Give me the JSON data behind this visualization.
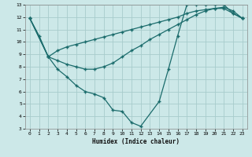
{
  "xlabel": "Humidex (Indice chaleur)",
  "xlim": [
    -0.5,
    23.5
  ],
  "ylim": [
    3,
    13
  ],
  "xticks": [
    0,
    1,
    2,
    3,
    4,
    5,
    6,
    7,
    8,
    9,
    10,
    11,
    12,
    13,
    14,
    15,
    16,
    17,
    18,
    19,
    20,
    21,
    22,
    23
  ],
  "yticks": [
    3,
    4,
    5,
    6,
    7,
    8,
    9,
    10,
    11,
    12,
    13
  ],
  "bg_color": "#cce8e8",
  "line_color": "#1a6b6b",
  "grid_color": "#a8cccc",
  "line1_x": [
    0,
    1,
    2,
    3,
    4,
    5,
    6,
    7,
    8,
    9,
    10,
    11,
    12,
    14,
    15,
    16,
    17,
    18,
    19,
    20,
    21,
    22,
    23
  ],
  "line1_y": [
    11.9,
    10.5,
    8.8,
    7.8,
    7.2,
    6.5,
    6.0,
    5.8,
    5.5,
    4.5,
    4.4,
    3.5,
    3.2,
    5.2,
    7.8,
    10.5,
    13.0,
    13.0,
    13.0,
    13.0,
    13.0,
    12.3,
    11.9
  ],
  "line2_x": [
    0,
    2,
    3,
    4,
    5,
    6,
    7,
    8,
    9,
    10,
    11,
    12,
    13,
    14,
    15,
    16,
    17,
    18,
    19,
    20,
    21,
    22,
    23
  ],
  "line2_y": [
    11.9,
    8.8,
    8.5,
    8.2,
    8.0,
    7.8,
    7.8,
    8.0,
    8.3,
    8.8,
    9.3,
    9.7,
    10.2,
    10.6,
    11.0,
    11.4,
    11.8,
    12.2,
    12.5,
    12.7,
    12.8,
    12.5,
    11.9
  ],
  "line3_x": [
    0,
    2,
    3,
    4,
    5,
    6,
    7,
    8,
    9,
    10,
    11,
    12,
    13,
    14,
    15,
    16,
    17,
    18,
    19,
    20,
    21,
    22,
    23
  ],
  "line3_y": [
    11.9,
    8.8,
    9.3,
    9.6,
    9.8,
    10.0,
    10.2,
    10.4,
    10.6,
    10.8,
    11.0,
    11.2,
    11.4,
    11.6,
    11.8,
    12.0,
    12.3,
    12.5,
    12.6,
    12.7,
    12.7,
    12.3,
    11.9
  ]
}
